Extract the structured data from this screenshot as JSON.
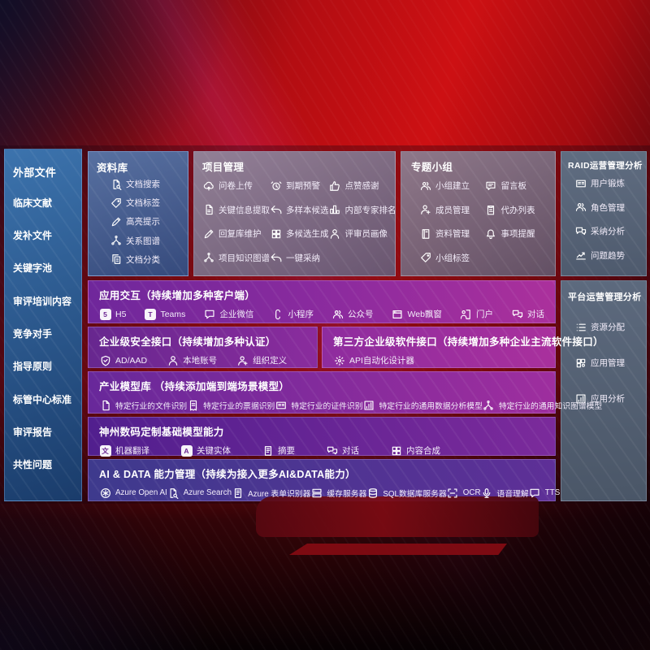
{
  "colors": {
    "accent_red": "#cd1013",
    "panel_blue": "#3c73ad",
    "band_purple": "#8d2b9e",
    "band_indigo": "#3e3a8d",
    "panel_gray": "#5d6a7e"
  },
  "left_panel": {
    "title": "外部文件",
    "items": [
      "临床文献",
      "发补文件",
      "关键字池",
      "审评培训内容",
      "竞争对手",
      "指导原则",
      "标管中心标准",
      "审评报告",
      "共性问题"
    ]
  },
  "repository": {
    "title": "资料库",
    "items": [
      {
        "icon": "document-search",
        "label": "文档搜索"
      },
      {
        "icon": "tag",
        "label": "文档标签"
      },
      {
        "icon": "pencil",
        "label": "高亮提示"
      },
      {
        "icon": "knowledge-graph",
        "label": "关系图谱"
      },
      {
        "icon": "document-copy",
        "label": "文档分类"
      }
    ]
  },
  "project_management": {
    "title": "项目管理",
    "items": [
      {
        "icon": "cloud-upload",
        "label": "问卷上传"
      },
      {
        "icon": "alarm",
        "label": "到期预警"
      },
      {
        "icon": "thumbs-up",
        "label": "点赞感谢"
      },
      {
        "icon": "document-lines",
        "label": "关键信息提取"
      },
      {
        "icon": "reply-arrow",
        "label": "多样本候选"
      },
      {
        "icon": "rank-podium",
        "label": "内部专家排名"
      },
      {
        "icon": "pencil",
        "label": "回复库维护"
      },
      {
        "icon": "puzzle",
        "label": "多候选生成"
      },
      {
        "icon": "person",
        "label": "评审员画像"
      },
      {
        "icon": "knowledge-graph",
        "label": "项目知识图谱"
      },
      {
        "icon": "reply-arrow",
        "label": "一键采纳"
      }
    ]
  },
  "topic_groups": {
    "title": "专题小组",
    "items": [
      {
        "icon": "people",
        "label": "小组建立"
      },
      {
        "icon": "bbs-board",
        "label": "留言板"
      },
      {
        "icon": "person-add",
        "label": "成员管理"
      },
      {
        "icon": "clipboard",
        "label": "代办列表"
      },
      {
        "icon": "book",
        "label": "资料管理"
      },
      {
        "icon": "bell",
        "label": "事项提醒"
      },
      {
        "icon": "tag",
        "label": "小组标签"
      }
    ]
  },
  "raid_analysis": {
    "title": "RAID运营管理分析",
    "items": [
      {
        "icon": "id-card",
        "label": "用户锻炼"
      },
      {
        "icon": "people",
        "label": "角色管理"
      },
      {
        "icon": "chat-qa",
        "label": "采纳分析"
      },
      {
        "icon": "trend-chart",
        "label": "问题趋势"
      }
    ]
  },
  "platform_analysis": {
    "title": "平台运营管理分析",
    "items": [
      {
        "icon": "list-lines",
        "label": "资源分配"
      },
      {
        "icon": "app-grid",
        "label": "应用管理"
      },
      {
        "icon": "chart-box",
        "label": "应用分析"
      }
    ]
  },
  "interaction": {
    "title": "应用交互（持续增加多种客户端）",
    "items": [
      {
        "icon": "letter-5",
        "label": "H5"
      },
      {
        "icon": "letter-t",
        "label": "Teams"
      },
      {
        "icon": "chat-bubble",
        "label": "企业微信"
      },
      {
        "icon": "s-curve",
        "label": "小程序"
      },
      {
        "icon": "people",
        "label": "公众号"
      },
      {
        "icon": "window-frame",
        "label": "Web飘窗"
      },
      {
        "icon": "portal-door",
        "label": "门户"
      },
      {
        "icon": "dialog-bubbles",
        "label": "对话"
      }
    ]
  },
  "security": {
    "title": "企业级安全接口（持续增加多种认证）",
    "items": [
      {
        "icon": "shield",
        "label": "AD/AAD"
      },
      {
        "icon": "person",
        "label": "本地账号"
      },
      {
        "icon": "person-add",
        "label": "组织定义"
      }
    ]
  },
  "third_party": {
    "title": "第三方企业级软件接口（持续增加多种企业主流软件接口）",
    "items": [
      {
        "icon": "gear",
        "label": "API自动化设计器"
      }
    ]
  },
  "industry_models": {
    "title": "产业模型库 （持续添加端到端场景模型）",
    "items": [
      {
        "icon": "document",
        "label": "特定行业的文件识别"
      },
      {
        "icon": "receipt",
        "label": "特定行业的票据识别"
      },
      {
        "icon": "id-card",
        "label": "特定行业的证件识别"
      },
      {
        "icon": "chart-box",
        "label": "特定行业的通用数据分析模型"
      },
      {
        "icon": "knowledge-graph",
        "label": "特定行业的通用知识图谱模型"
      }
    ]
  },
  "base_models": {
    "title": "神州数码定制基础模型能力",
    "items": [
      {
        "icon": "letter-wen",
        "label": "机器翻译"
      },
      {
        "icon": "letter-a",
        "label": "关键实体"
      },
      {
        "icon": "form-doc",
        "label": "摘要"
      },
      {
        "icon": "dialog-bubbles",
        "label": "对话"
      },
      {
        "icon": "puzzle",
        "label": "内容合成"
      }
    ]
  },
  "ai_data": {
    "title": "AI & DATA 能力管理（持续为接入更多AI&DATA能力）",
    "items": [
      {
        "icon": "openai-flower",
        "label": "Azure Open AI"
      },
      {
        "icon": "document-search",
        "label": "Azure Search"
      },
      {
        "icon": "form-doc",
        "label": "Azure 表单识别器"
      },
      {
        "icon": "server",
        "label": "缓存服务器"
      },
      {
        "icon": "database",
        "label": "SQL数据库服务器"
      },
      {
        "icon": "ocr-frame",
        "label": "OCR"
      },
      {
        "icon": "microphone",
        "label": "语音理解"
      },
      {
        "icon": "chat-bubble",
        "label": "TTS"
      }
    ]
  }
}
